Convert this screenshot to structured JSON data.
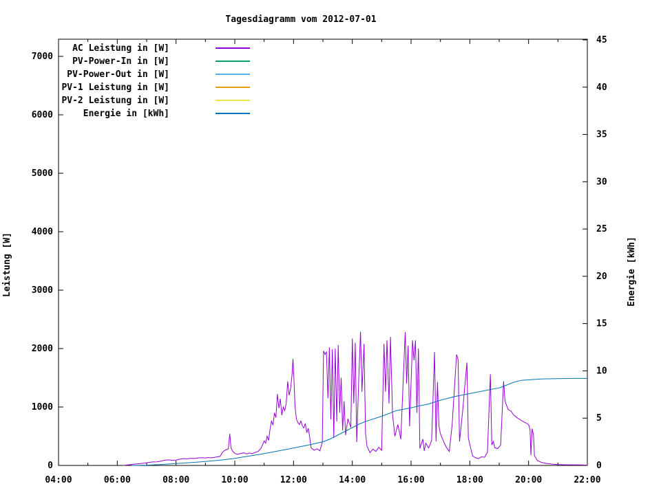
{
  "title": "Tagesdiagramm vom 2012-07-01",
  "colors": {
    "background": "#ffffff",
    "axis": "#000000",
    "text": "#000000"
  },
  "chart_data": {
    "type": "line",
    "title": "Tagesdiagramm vom 2012-07-01",
    "grid": false,
    "legend_position": "top-left-inside",
    "x_axis": {
      "unit": "time",
      "range_hours": [
        4,
        22
      ],
      "major_tick_hours": [
        4,
        6,
        8,
        10,
        12,
        14,
        16,
        18,
        20,
        22
      ],
      "tick_labels": [
        "04:00",
        "06:00",
        "08:00",
        "10:00",
        "12:00",
        "14:00",
        "16:00",
        "18:00",
        "20:00",
        "22:00"
      ],
      "minor_tick_hours": [
        5,
        7,
        9,
        11,
        13,
        15,
        17,
        19,
        21
      ]
    },
    "y_left": {
      "label": "Leistung [W]",
      "ticks": [
        0,
        1000,
        2000,
        3000,
        4000,
        5000,
        6000,
        7000
      ],
      "range": [
        0,
        7290
      ]
    },
    "y_right": {
      "label": "Energie [kWh]",
      "ticks": [
        0,
        5,
        10,
        15,
        20,
        25,
        30,
        35,
        40,
        45
      ],
      "range": [
        0,
        45.1
      ]
    },
    "legend": [
      {
        "label": "AC Leistung in [W]",
        "color": "#9400d3"
      },
      {
        "label": "PV-Power-In in [W]",
        "color": "#009e73"
      },
      {
        "label": "PV-Power-Out in [W]",
        "color": "#56b4e9"
      },
      {
        "label": "PV-1 Leistung in [W]",
        "color": "#e69f00"
      },
      {
        "label": "PV-2 Leistung in [W]",
        "color": "#f0e442"
      },
      {
        "label": "Energie in [kWh]",
        "color": "#0072b2"
      }
    ],
    "series": [
      {
        "name": "AC Leistung in [W]",
        "axis": "left",
        "color": "#9400d3",
        "points": [
          [
            6.2,
            0
          ],
          [
            6.35,
            8
          ],
          [
            6.5,
            18
          ],
          [
            6.7,
            28
          ],
          [
            6.9,
            38
          ],
          [
            7.05,
            50
          ],
          [
            7.2,
            60
          ],
          [
            7.35,
            62
          ],
          [
            7.5,
            75
          ],
          [
            7.6,
            88
          ],
          [
            7.75,
            95
          ],
          [
            7.85,
            88
          ],
          [
            8.0,
            92
          ],
          [
            8.1,
            105
          ],
          [
            8.25,
            118
          ],
          [
            8.35,
            112
          ],
          [
            8.5,
            122
          ],
          [
            8.6,
            118
          ],
          [
            8.75,
            128
          ],
          [
            8.9,
            132
          ],
          [
            9.0,
            126
          ],
          [
            9.1,
            135
          ],
          [
            9.2,
            130
          ],
          [
            9.35,
            142
          ],
          [
            9.5,
            155
          ],
          [
            9.58,
            225
          ],
          [
            9.65,
            255
          ],
          [
            9.72,
            272
          ],
          [
            9.78,
            282
          ],
          [
            9.83,
            540
          ],
          [
            9.87,
            300
          ],
          [
            9.92,
            248
          ],
          [
            10.0,
            205
          ],
          [
            10.1,
            190
          ],
          [
            10.2,
            205
          ],
          [
            10.3,
            215
          ],
          [
            10.4,
            198
          ],
          [
            10.5,
            212
          ],
          [
            10.6,
            200
          ],
          [
            10.7,
            225
          ],
          [
            10.8,
            240
          ],
          [
            10.9,
            300
          ],
          [
            10.95,
            360
          ],
          [
            11.0,
            420
          ],
          [
            11.05,
            380
          ],
          [
            11.1,
            500
          ],
          [
            11.15,
            430
          ],
          [
            11.2,
            620
          ],
          [
            11.25,
            760
          ],
          [
            11.3,
            690
          ],
          [
            11.35,
            900
          ],
          [
            11.4,
            820
          ],
          [
            11.45,
            1220
          ],
          [
            11.5,
            980
          ],
          [
            11.55,
            1140
          ],
          [
            11.6,
            860
          ],
          [
            11.65,
            1000
          ],
          [
            11.7,
            940
          ],
          [
            11.75,
            1060
          ],
          [
            11.8,
            1440
          ],
          [
            11.85,
            1200
          ],
          [
            11.9,
            1320
          ],
          [
            11.95,
            1560
          ],
          [
            11.98,
            1824
          ],
          [
            12.02,
            1400
          ],
          [
            12.05,
            1000
          ],
          [
            12.1,
            790
          ],
          [
            12.15,
            730
          ],
          [
            12.2,
            700
          ],
          [
            12.25,
            760
          ],
          [
            12.3,
            680
          ],
          [
            12.35,
            640
          ],
          [
            12.4,
            720
          ],
          [
            12.45,
            560
          ],
          [
            12.5,
            635
          ],
          [
            12.55,
            480
          ],
          [
            12.6,
            300
          ],
          [
            12.7,
            260
          ],
          [
            12.8,
            285
          ],
          [
            12.9,
            250
          ],
          [
            12.98,
            400
          ],
          [
            13.02,
            1960
          ],
          [
            13.07,
            1900
          ],
          [
            13.12,
            1940
          ],
          [
            13.17,
            1150
          ],
          [
            13.22,
            2020
          ],
          [
            13.27,
            790
          ],
          [
            13.32,
            1990
          ],
          [
            13.37,
            470
          ],
          [
            13.42,
            2000
          ],
          [
            13.47,
            750
          ],
          [
            13.52,
            2060
          ],
          [
            13.57,
            900
          ],
          [
            13.62,
            1500
          ],
          [
            13.67,
            600
          ],
          [
            13.72,
            1100
          ],
          [
            13.77,
            520
          ],
          [
            13.85,
            800
          ],
          [
            13.95,
            650
          ],
          [
            14.0,
            2170
          ],
          [
            14.05,
            1060
          ],
          [
            14.1,
            2100
          ],
          [
            14.15,
            400
          ],
          [
            14.22,
            1500
          ],
          [
            14.28,
            2290
          ],
          [
            14.33,
            1260
          ],
          [
            14.4,
            2080
          ],
          [
            14.45,
            550
          ],
          [
            14.5,
            330
          ],
          [
            14.6,
            220
          ],
          [
            14.7,
            280
          ],
          [
            14.8,
            240
          ],
          [
            14.9,
            310
          ],
          [
            15.0,
            260
          ],
          [
            15.08,
            2080
          ],
          [
            15.13,
            1260
          ],
          [
            15.18,
            2140
          ],
          [
            15.25,
            1060
          ],
          [
            15.3,
            2200
          ],
          [
            15.37,
            870
          ],
          [
            15.45,
            500
          ],
          [
            15.55,
            700
          ],
          [
            15.65,
            450
          ],
          [
            15.8,
            2280
          ],
          [
            15.85,
            1400
          ],
          [
            15.9,
            2050
          ],
          [
            15.95,
            670
          ],
          [
            16.05,
            2140
          ],
          [
            16.1,
            1800
          ],
          [
            16.15,
            2140
          ],
          [
            16.2,
            900
          ],
          [
            16.25,
            2000
          ],
          [
            16.3,
            290
          ],
          [
            16.4,
            450
          ],
          [
            16.45,
            250
          ],
          [
            16.5,
            380
          ],
          [
            16.6,
            300
          ],
          [
            16.7,
            430
          ],
          [
            16.8,
            1940
          ],
          [
            16.85,
            410
          ],
          [
            16.9,
            1430
          ],
          [
            16.95,
            670
          ],
          [
            17.0,
            540
          ],
          [
            17.05,
            480
          ],
          [
            17.1,
            420
          ],
          [
            17.2,
            310
          ],
          [
            17.3,
            240
          ],
          [
            17.4,
            700
          ],
          [
            17.55,
            1900
          ],
          [
            17.6,
            1810
          ],
          [
            17.65,
            410
          ],
          [
            17.75,
            900
          ],
          [
            17.9,
            1760
          ],
          [
            17.95,
            470
          ],
          [
            18.05,
            250
          ],
          [
            18.1,
            160
          ],
          [
            18.2,
            130
          ],
          [
            18.3,
            118
          ],
          [
            18.4,
            150
          ],
          [
            18.5,
            140
          ],
          [
            18.6,
            220
          ],
          [
            18.7,
            1560
          ],
          [
            18.75,
            350
          ],
          [
            18.8,
            410
          ],
          [
            18.85,
            300
          ],
          [
            18.95,
            290
          ],
          [
            19.05,
            350
          ],
          [
            19.15,
            1440
          ],
          [
            19.2,
            1100
          ],
          [
            19.3,
            960
          ],
          [
            19.4,
            930
          ],
          [
            19.5,
            860
          ],
          [
            19.6,
            820
          ],
          [
            19.75,
            770
          ],
          [
            19.9,
            730
          ],
          [
            20.0,
            700
          ],
          [
            20.05,
            612
          ],
          [
            20.08,
            176
          ],
          [
            20.12,
            630
          ],
          [
            20.17,
            518
          ],
          [
            20.2,
            165
          ],
          [
            20.3,
            82
          ],
          [
            20.45,
            50
          ],
          [
            20.6,
            35
          ],
          [
            20.8,
            22
          ],
          [
            21.0,
            15
          ],
          [
            21.2,
            12
          ],
          [
            21.5,
            10
          ],
          [
            21.8,
            8
          ],
          [
            22.0,
            5
          ]
        ]
      },
      {
        "name": "Energie in [kWh]",
        "axis": "right",
        "color": "#0072b2",
        "points": [
          [
            6.5,
            0
          ],
          [
            7.0,
            0.03
          ],
          [
            7.5,
            0.1
          ],
          [
            8.0,
            0.2
          ],
          [
            8.5,
            0.3
          ],
          [
            9.0,
            0.42
          ],
          [
            9.5,
            0.55
          ],
          [
            10.0,
            0.75
          ],
          [
            10.5,
            1.0
          ],
          [
            11.0,
            1.25
          ],
          [
            11.5,
            1.55
          ],
          [
            12.0,
            1.85
          ],
          [
            12.5,
            2.15
          ],
          [
            13.0,
            2.5
          ],
          [
            13.25,
            2.8
          ],
          [
            13.5,
            3.2
          ],
          [
            13.75,
            3.6
          ],
          [
            14.0,
            4.0
          ],
          [
            14.25,
            4.4
          ],
          [
            14.5,
            4.7
          ],
          [
            15.0,
            5.2
          ],
          [
            15.5,
            5.8
          ],
          [
            16.0,
            6.1
          ],
          [
            16.3,
            6.3
          ],
          [
            16.6,
            6.5
          ],
          [
            17.0,
            6.9
          ],
          [
            17.5,
            7.3
          ],
          [
            18.0,
            7.6
          ],
          [
            18.5,
            7.9
          ],
          [
            19.0,
            8.2
          ],
          [
            19.25,
            8.5
          ],
          [
            19.5,
            8.8
          ],
          [
            19.75,
            9.0
          ],
          [
            20.0,
            9.05
          ],
          [
            20.25,
            9.1
          ],
          [
            20.5,
            9.15
          ],
          [
            21.0,
            9.18
          ],
          [
            21.5,
            9.2
          ],
          [
            22.0,
            9.2
          ]
        ]
      }
    ]
  }
}
